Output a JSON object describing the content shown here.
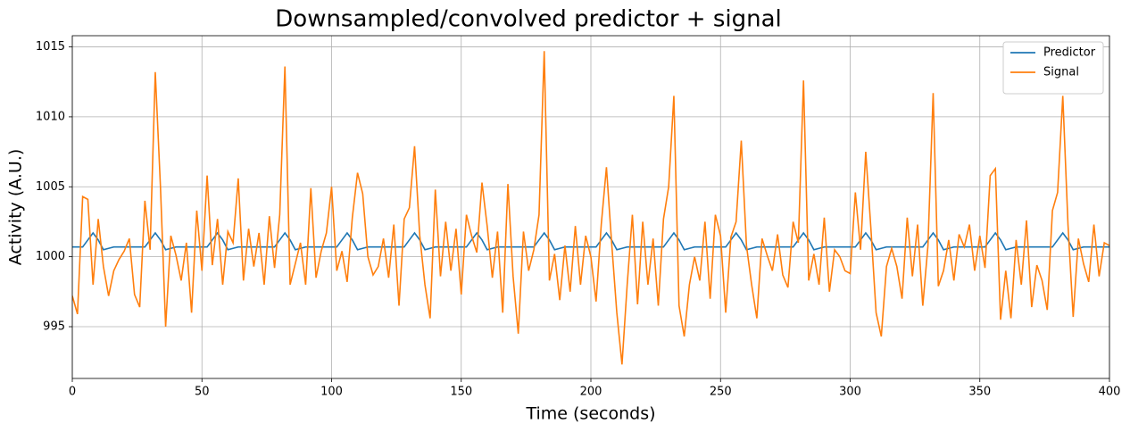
{
  "chart_data": {
    "type": "line",
    "title": "Downsampled/convolved predictor + signal",
    "xlabel": "Time (seconds)",
    "ylabel": "Activity (A.U.)",
    "x": [
      0,
      2,
      4,
      6,
      8,
      10,
      12,
      14,
      16,
      18,
      20,
      22,
      24,
      26,
      28,
      30,
      32,
      34,
      36,
      38,
      40,
      42,
      44,
      46,
      48,
      50,
      52,
      54,
      56,
      58,
      60,
      62,
      64,
      66,
      68,
      70,
      72,
      74,
      76,
      78,
      80,
      82,
      84,
      86,
      88,
      90,
      92,
      94,
      96,
      98,
      100,
      102,
      104,
      106,
      108,
      110,
      112,
      114,
      116,
      118,
      120,
      122,
      124,
      126,
      128,
      130,
      132,
      134,
      136,
      138,
      140,
      142,
      144,
      146,
      148,
      150,
      152,
      154,
      156,
      158,
      160,
      162,
      164,
      166,
      168,
      170,
      172,
      174,
      176,
      178,
      180,
      182,
      184,
      186,
      188,
      190,
      192,
      194,
      196,
      198,
      200,
      202,
      204,
      206,
      208,
      210,
      212,
      214,
      216,
      218,
      220,
      222,
      224,
      226,
      228,
      230,
      232,
      234,
      236,
      238,
      240,
      242,
      244,
      246,
      248,
      250,
      252,
      254,
      256,
      258,
      260,
      262,
      264,
      266,
      268,
      270,
      272,
      274,
      276,
      278,
      280,
      282,
      284,
      286,
      288,
      290,
      292,
      294,
      296,
      298,
      300,
      302,
      304,
      306,
      308,
      310,
      312,
      314,
      316,
      318,
      320,
      322,
      324,
      326,
      328,
      330,
      332,
      334,
      336,
      338,
      340,
      342,
      344,
      346,
      348,
      350,
      352,
      354,
      356,
      358,
      360,
      362,
      364,
      366,
      368,
      370,
      372,
      374,
      376,
      378,
      380,
      382,
      384,
      386,
      388,
      390,
      392,
      394,
      396,
      398,
      400
    ],
    "series": [
      {
        "name": "Predictor",
        "color": "#1f77b4",
        "values": [
          1000.7,
          1000.7,
          1000.7,
          1001.2,
          1001.7,
          1001.2,
          1000.5,
          1000.6,
          1000.7,
          1000.7,
          1000.7,
          1000.7,
          1000.7,
          1000.7,
          1000.7,
          1001.2,
          1001.7,
          1001.2,
          1000.5,
          1000.6,
          1000.7,
          1000.7,
          1000.7,
          1000.7,
          1000.7,
          1000.7,
          1000.7,
          1001.2,
          1001.7,
          1001.2,
          1000.5,
          1000.6,
          1000.7,
          1000.7,
          1000.7,
          1000.7,
          1000.7,
          1000.7,
          1000.7,
          1000.7,
          1001.2,
          1001.7,
          1001.2,
          1000.5,
          1000.6,
          1000.7,
          1000.7,
          1000.7,
          1000.7,
          1000.7,
          1000.7,
          1000.7,
          1001.2,
          1001.7,
          1001.2,
          1000.5,
          1000.6,
          1000.7,
          1000.7,
          1000.7,
          1000.7,
          1000.7,
          1000.7,
          1000.7,
          1000.7,
          1001.2,
          1001.7,
          1001.2,
          1000.5,
          1000.6,
          1000.7,
          1000.7,
          1000.7,
          1000.7,
          1000.7,
          1000.7,
          1000.7,
          1001.2,
          1001.7,
          1001.2,
          1000.5,
          1000.6,
          1000.7,
          1000.7,
          1000.7,
          1000.7,
          1000.7,
          1000.7,
          1000.7,
          1000.7,
          1001.2,
          1001.7,
          1001.2,
          1000.5,
          1000.6,
          1000.7,
          1000.7,
          1000.7,
          1000.7,
          1000.7,
          1000.7,
          1000.7,
          1001.2,
          1001.7,
          1001.2,
          1000.5,
          1000.6,
          1000.7,
          1000.7,
          1000.7,
          1000.7,
          1000.7,
          1000.7,
          1000.7,
          1000.7,
          1001.2,
          1001.7,
          1001.2,
          1000.5,
          1000.6,
          1000.7,
          1000.7,
          1000.7,
          1000.7,
          1000.7,
          1000.7,
          1000.7,
          1001.2,
          1001.7,
          1001.2,
          1000.5,
          1000.6,
          1000.7,
          1000.7,
          1000.7,
          1000.7,
          1000.7,
          1000.7,
          1000.7,
          1000.7,
          1001.2,
          1001.7,
          1001.2,
          1000.5,
          1000.6,
          1000.7,
          1000.7,
          1000.7,
          1000.7,
          1000.7,
          1000.7,
          1000.7,
          1001.2,
          1001.7,
          1001.2,
          1000.5,
          1000.6,
          1000.7,
          1000.7,
          1000.7,
          1000.7,
          1000.7,
          1000.7,
          1000.7,
          1000.7,
          1001.2,
          1001.7,
          1001.2,
          1000.5,
          1000.6,
          1000.7,
          1000.7,
          1000.7,
          1000.7,
          1000.7,
          1000.7,
          1000.7,
          1001.2,
          1001.7,
          1001.2,
          1000.5,
          1000.6,
          1000.7,
          1000.7,
          1000.7,
          1000.7,
          1000.7,
          1000.7,
          1000.7,
          1000.7,
          1001.2,
          1001.7,
          1001.2,
          1000.5,
          1000.6,
          1000.7,
          1000.7,
          1000.7,
          1000.7,
          1000.7,
          1000.7
        ]
      },
      {
        "name": "Signal",
        "color": "#ff7f0e",
        "values": [
          997.2,
          995.9,
          1004.3,
          1004.1,
          998.0,
          1002.7,
          999.3,
          997.2,
          999.0,
          999.8,
          1000.4,
          1001.3,
          997.3,
          996.4,
          1004.0,
          1000.5,
          1013.2,
          1005.0,
          995.0,
          1001.5,
          1000.1,
          998.3,
          1001.0,
          996.0,
          1003.3,
          999.0,
          1005.8,
          999.4,
          1002.7,
          998.0,
          1001.8,
          1001.0,
          1005.6,
          998.3,
          1002.0,
          999.3,
          1001.7,
          998.0,
          1002.9,
          999.2,
          1003.0,
          1013.6,
          998.0,
          999.5,
          1001.0,
          998.0,
          1004.9,
          998.5,
          1000.4,
          1001.7,
          1005.0,
          999.0,
          1000.4,
          998.2,
          1002.8,
          1006.0,
          1004.5,
          1000.0,
          998.7,
          999.3,
          1001.3,
          998.5,
          1002.3,
          996.5,
          1002.7,
          1003.5,
          1007.9,
          1001.5,
          998.0,
          995.6,
          1004.8,
          998.6,
          1002.5,
          999.0,
          1002.0,
          997.3,
          1003.0,
          1001.5,
          1000.3,
          1005.3,
          1002.2,
          998.5,
          1001.8,
          996.0,
          1005.2,
          998.6,
          994.5,
          1001.8,
          999.0,
          1000.5,
          1003.0,
          1014.7,
          998.3,
          1000.2,
          996.9,
          1000.8,
          997.5,
          1002.2,
          998.0,
          1001.5,
          1000.0,
          996.8,
          1002.3,
          1006.4,
          1001.0,
          996.0,
          992.3,
          998.0,
          1003.0,
          996.6,
          1002.5,
          998.0,
          1001.3,
          996.5,
          1002.7,
          1005.0,
          1011.5,
          996.5,
          994.3,
          998.0,
          1000.0,
          998.3,
          1002.5,
          997.0,
          1003.0,
          1001.5,
          996.0,
          1001.4,
          1002.5,
          1008.3,
          1000.8,
          998.0,
          995.6,
          1001.3,
          1000.1,
          999.0,
          1001.6,
          998.7,
          997.8,
          1002.5,
          1001.0,
          1012.6,
          998.3,
          1000.2,
          998.0,
          1002.8,
          997.5,
          1000.5,
          1000.0,
          999.0,
          998.8,
          1004.6,
          1000.5,
          1007.5,
          1002.0,
          996.0,
          994.3,
          999.3,
          1000.6,
          999.3,
          997.0,
          1002.8,
          998.6,
          1002.3,
          996.5,
          1000.8,
          1011.7,
          997.9,
          999.0,
          1001.2,
          998.3,
          1001.6,
          1000.7,
          1002.3,
          999.0,
          1001.5,
          999.2,
          1005.8,
          1006.3,
          995.5,
          999.0,
          995.6,
          1001.2,
          998.0,
          1002.6,
          996.4,
          999.4,
          998.3,
          996.2,
          1003.3,
          1004.6,
          1011.5,
          1002.3,
          995.7,
          1001.3,
          999.5,
          998.2,
          1002.3,
          998.6,
          1001.0,
          1000.8
        ]
      }
    ],
    "xlim": [
      0,
      400
    ],
    "xticks": [
      0,
      50,
      100,
      150,
      200,
      250,
      300,
      350,
      400
    ],
    "ylim": [
      991.3,
      1015.8
    ],
    "yticks": [
      995,
      1000,
      1005,
      1010,
      1015
    ],
    "grid": true,
    "legend": "upper right"
  }
}
